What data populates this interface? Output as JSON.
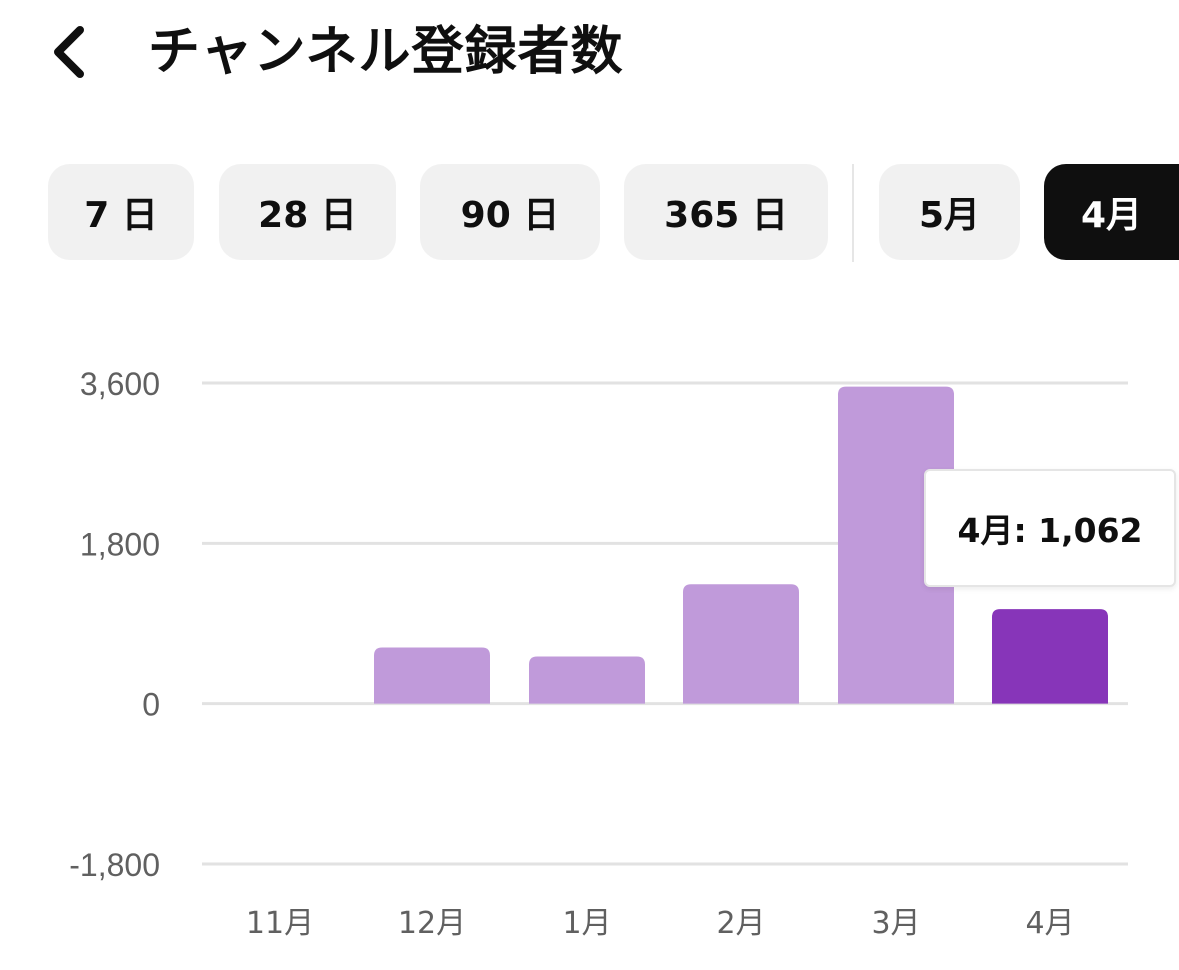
{
  "header": {
    "title": "チャンネル登録者数",
    "back_icon": "chevron-left-icon"
  },
  "period_chips": [
    {
      "label": "7 日",
      "selected": false
    },
    {
      "label": "28 日",
      "selected": false
    },
    {
      "label": "90 日",
      "selected": false
    },
    {
      "label": "365 日",
      "selected": false
    },
    {
      "label": "5月",
      "selected": false
    },
    {
      "label": "4月",
      "selected": true
    }
  ],
  "tooltip": {
    "text": "4月: 1,062"
  },
  "colors": {
    "bar": "#c09ada",
    "bar_highlight": "#8735b9",
    "gridline": "#e2e2e2",
    "axis_text": "#606060",
    "chip_bg": "#f1f1f1",
    "chip_selected_bg": "#0f0f0f"
  },
  "chart_data": {
    "type": "bar",
    "categories": [
      "11月",
      "12月",
      "1月",
      "2月",
      "3月",
      "4月"
    ],
    "values": [
      0,
      630,
      530,
      1340,
      3560,
      1062
    ],
    "highlight_index": 5,
    "ylim": [
      -1800,
      3600
    ],
    "yticks": [
      3600,
      1800,
      0,
      -1800
    ],
    "ytick_labels": [
      "3,600",
      "1,800",
      "0",
      "-1,800"
    ],
    "grid": true,
    "title": "",
    "xlabel": "",
    "ylabel": ""
  }
}
